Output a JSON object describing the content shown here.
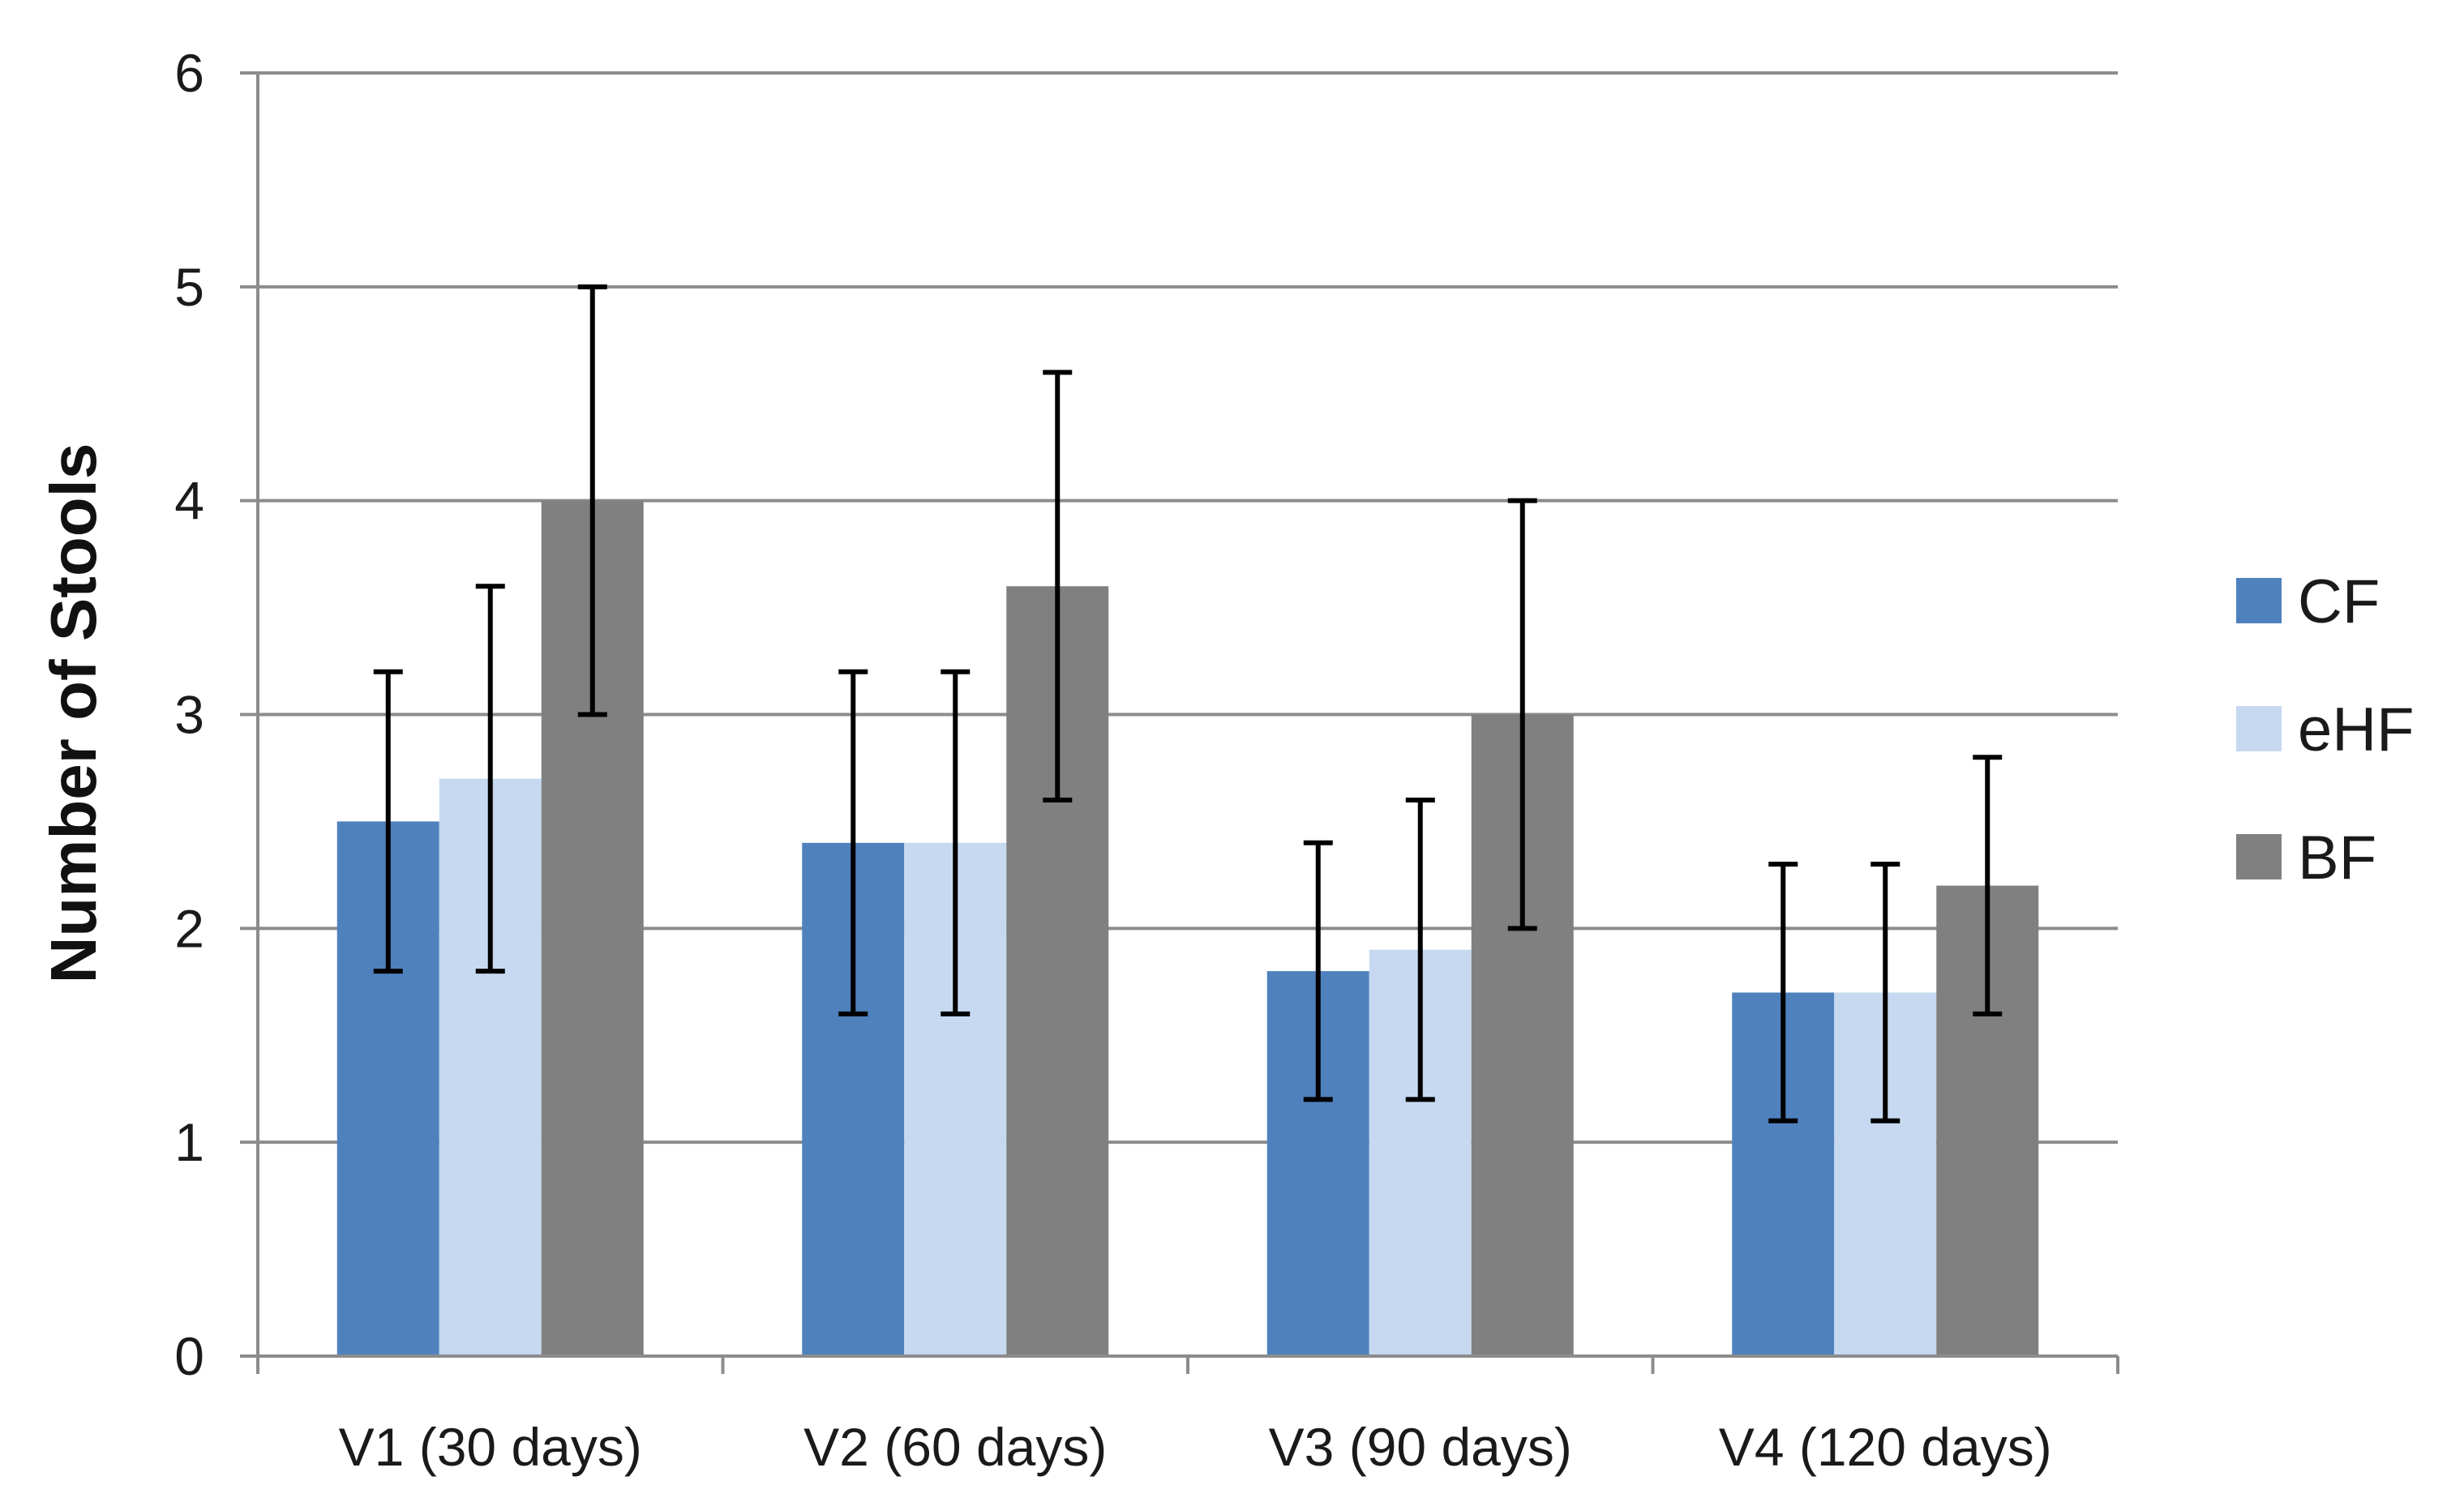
{
  "chart_data": {
    "type": "bar",
    "title": "",
    "xlabel": "",
    "ylabel": "Number of Stools",
    "ylim": [
      0,
      6
    ],
    "yticks": [
      0,
      1,
      2,
      3,
      4,
      5,
      6
    ],
    "grid": true,
    "legend_position": "right",
    "categories": [
      "V1 (30 days)",
      "V2 (60 days)",
      "V3 (90 days)",
      "V4 (120 days)"
    ],
    "series": [
      {
        "name": "CF",
        "color": "#4f81bd",
        "values": [
          2.5,
          2.4,
          1.8,
          1.7
        ],
        "error_low": [
          1.8,
          1.6,
          1.2,
          1.1
        ],
        "error_high": [
          3.2,
          3.2,
          2.4,
          2.3
        ]
      },
      {
        "name": "eHF",
        "color": "#c6d9f1",
        "values": [
          2.7,
          2.4,
          1.9,
          1.7
        ],
        "error_low": [
          1.8,
          1.6,
          1.2,
          1.1
        ],
        "error_high": [
          3.6,
          3.2,
          2.6,
          2.3
        ]
      },
      {
        "name": "BF",
        "color": "#808080",
        "values": [
          4.0,
          3.6,
          3.0,
          2.2
        ],
        "error_low": [
          3.0,
          2.6,
          2.0,
          1.6
        ],
        "error_high": [
          5.0,
          4.6,
          4.0,
          2.8
        ]
      }
    ]
  }
}
